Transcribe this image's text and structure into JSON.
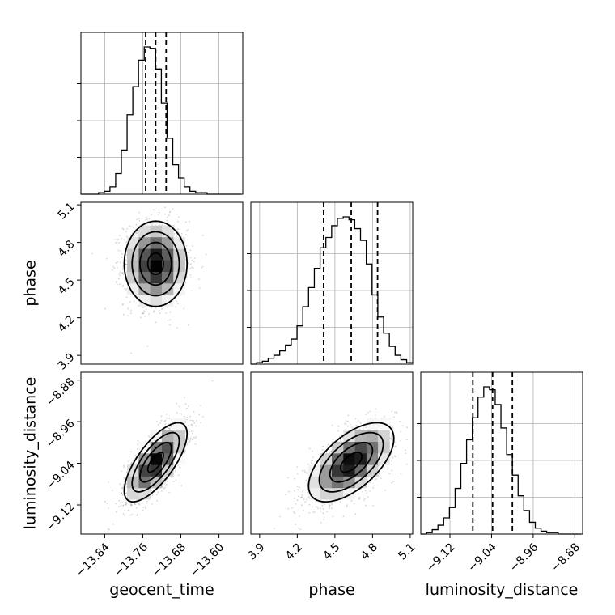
{
  "chart_data": {
    "type": "corner",
    "parameters": [
      "geocent_time",
      "phase",
      "luminosity_distance"
    ],
    "axes": {
      "geocent_time": {
        "label": "geocent_time",
        "range": [
          -13.89,
          -13.55
        ],
        "ticks": [
          -13.84,
          -13.76,
          -13.68,
          -13.6
        ],
        "tick_labels": [
          "−13.84",
          "−13.76",
          "−13.68",
          "−13.60"
        ]
      },
      "phase": {
        "label": "phase",
        "range": [
          3.83,
          5.12
        ],
        "ticks": [
          3.9,
          4.2,
          4.5,
          4.8,
          5.1
        ],
        "tick_labels": [
          "3.9",
          "4.2",
          "4.5",
          "4.8",
          "5.1"
        ]
      },
      "luminosity_distance": {
        "label": "luminosity_distance",
        "range": [
          -9.176,
          -8.865
        ],
        "ticks": [
          -9.12,
          -9.04,
          -8.96,
          -8.88
        ],
        "tick_labels": [
          "−9.12",
          "−9.04",
          "−8.96",
          "−8.88"
        ]
      }
    },
    "marginals": [
      {
        "parameter": "geocent_time",
        "quantiles": [
          -13.754,
          -13.733,
          -13.711
        ],
        "bin_edges": [
          -13.89,
          -13.877,
          -13.865,
          -13.853,
          -13.841,
          -13.829,
          -13.817,
          -13.805,
          -13.793,
          -13.781,
          -13.769,
          -13.757,
          -13.745,
          -13.733,
          -13.721,
          -13.709,
          -13.697,
          -13.685,
          -13.673,
          -13.661,
          -13.649,
          -13.637,
          -13.625,
          -13.613,
          -13.601,
          -13.589,
          -13.577,
          -13.565,
          -13.553
        ],
        "counts": [
          0,
          0,
          0,
          0.01,
          0.02,
          0.05,
          0.14,
          0.3,
          0.54,
          0.73,
          0.91,
          1.0,
          0.99,
          0.85,
          0.62,
          0.38,
          0.2,
          0.11,
          0.05,
          0.02,
          0.01,
          0.01,
          0,
          0,
          0,
          0,
          0,
          0
        ]
      },
      {
        "parameter": "phase",
        "quantiles": [
          4.41,
          4.63,
          4.84
        ],
        "bin_edges": [
          3.83,
          3.876,
          3.922,
          3.968,
          4.014,
          4.06,
          4.106,
          4.152,
          4.198,
          4.244,
          4.29,
          4.336,
          4.382,
          4.428,
          4.474,
          4.52,
          4.566,
          4.612,
          4.658,
          4.704,
          4.75,
          4.796,
          4.842,
          4.888,
          4.934,
          4.98,
          5.026,
          5.072,
          5.118
        ],
        "counts": [
          0,
          0.01,
          0.02,
          0.04,
          0.06,
          0.09,
          0.13,
          0.17,
          0.26,
          0.39,
          0.52,
          0.65,
          0.79,
          0.86,
          0.94,
          0.99,
          1.0,
          0.98,
          0.92,
          0.84,
          0.68,
          0.47,
          0.32,
          0.21,
          0.12,
          0.06,
          0.03,
          0.01
        ]
      },
      {
        "parameter": "luminosity_distance",
        "quantiles": [
          -9.076,
          -9.038,
          -9.0
        ],
        "bin_edges": [
          -9.176,
          -9.165,
          -9.154,
          -9.143,
          -9.132,
          -9.121,
          -9.11,
          -9.099,
          -9.088,
          -9.077,
          -9.066,
          -9.055,
          -9.044,
          -9.033,
          -9.022,
          -9.011,
          -9.0,
          -8.989,
          -8.978,
          -8.967,
          -8.956,
          -8.945,
          -8.934,
          -8.923,
          -8.912,
          -8.901,
          -8.89,
          -8.879,
          -8.868
        ],
        "counts": [
          0,
          0.01,
          0.03,
          0.06,
          0.11,
          0.18,
          0.31,
          0.48,
          0.64,
          0.79,
          0.93,
          1.0,
          0.98,
          0.88,
          0.72,
          0.54,
          0.4,
          0.26,
          0.16,
          0.08,
          0.04,
          0.02,
          0.01,
          0.01,
          0,
          0,
          0,
          0
        ]
      }
    ],
    "joint": [
      {
        "x": "geocent_time",
        "y": "phase",
        "center": [
          -13.733,
          4.63
        ],
        "sigma": [
          0.033,
          0.17
        ],
        "rho": 0.0
      },
      {
        "x": "geocent_time",
        "y": "luminosity_distance",
        "center": [
          -13.733,
          -9.038
        ],
        "sigma": [
          0.033,
          0.038
        ],
        "rho": 0.72
      },
      {
        "x": "phase",
        "y": "luminosity_distance",
        "center": [
          4.63,
          -9.038
        ],
        "sigma": [
          0.17,
          0.038
        ],
        "rho": 0.6
      }
    ],
    "contour_levels_sigma": [
      0.5,
      1.0,
      1.5,
      2.0
    ],
    "grid": true
  }
}
